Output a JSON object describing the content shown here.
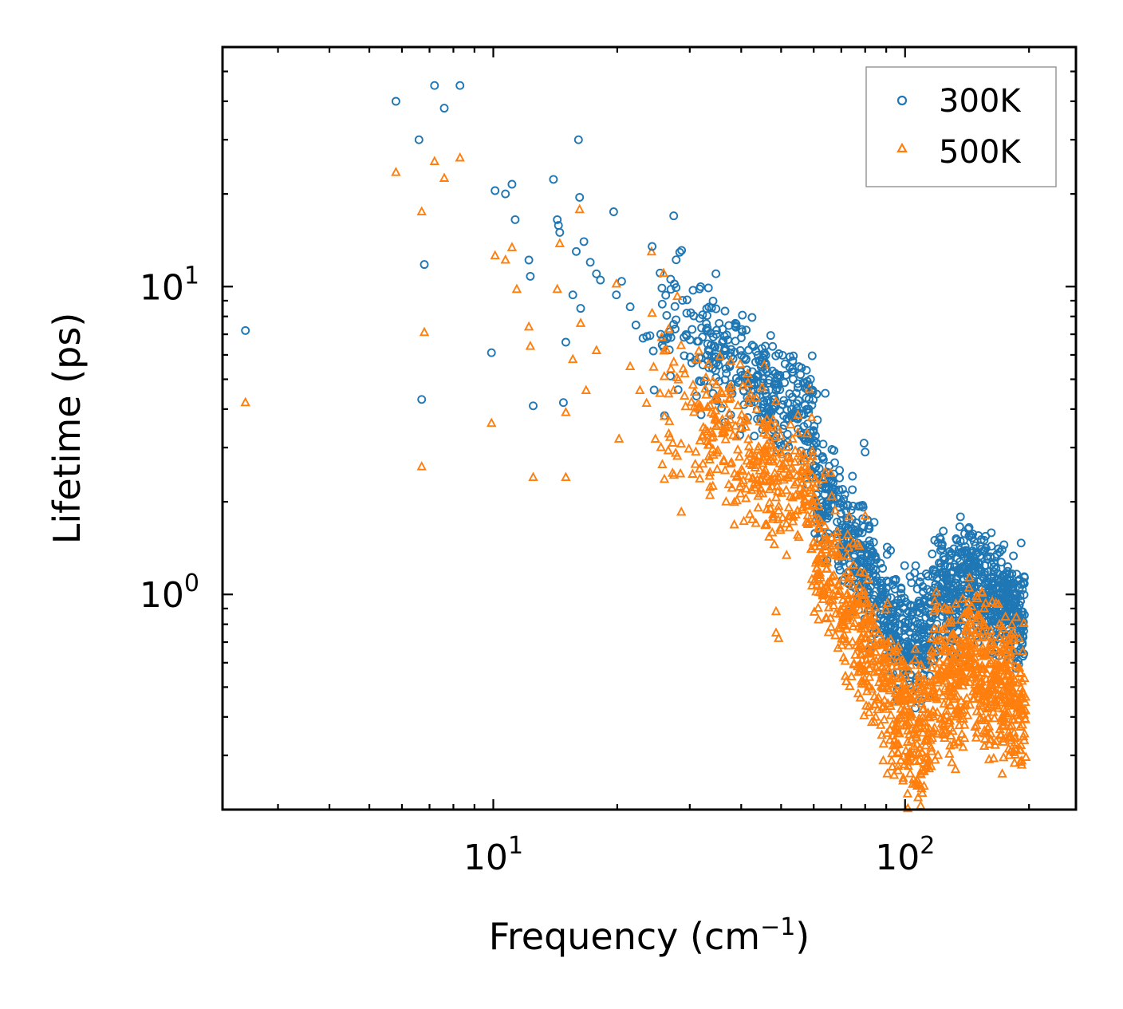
{
  "chart_data": {
    "type": "scatter",
    "title": "",
    "xlabel": "Frequency (cm",
    "xlabel_superscript": "−1",
    "xlabel_suffix": ")",
    "ylabel": "Lifetime (ps)",
    "xscale": "log",
    "yscale": "log",
    "xlim": [
      2.2,
      260
    ],
    "ylim": [
      0.2,
      60
    ],
    "grid": false,
    "legend_position": "top-right",
    "x_ticks": [
      {
        "base": "10",
        "exp": "1",
        "value": 10
      },
      {
        "base": "10",
        "exp": "2",
        "value": 100
      }
    ],
    "y_ticks": [
      {
        "base": "10",
        "exp": "0",
        "value": 1
      },
      {
        "base": "10",
        "exp": "1",
        "value": 10
      }
    ],
    "series": [
      {
        "name": "300K",
        "marker": "circle",
        "color": "#1f77b4",
        "values": [
          [
            2.5,
            7.2
          ],
          [
            5.8,
            40
          ],
          [
            6.6,
            30
          ],
          [
            6.7,
            4.3
          ],
          [
            6.8,
            11.8
          ],
          [
            7.2,
            45
          ],
          [
            7.6,
            38
          ],
          [
            8.3,
            45
          ],
          [
            9.9,
            6.1
          ],
          [
            10.1,
            20.5
          ],
          [
            10.7,
            20
          ],
          [
            11.1,
            21.5
          ],
          [
            11.3,
            16.5
          ],
          [
            12.2,
            12.2
          ],
          [
            12.3,
            10.8
          ],
          [
            12.5,
            4.1
          ],
          [
            14.0,
            22.3
          ],
          [
            14.3,
            16.5
          ],
          [
            14.4,
            15.8
          ],
          [
            14.5,
            15
          ],
          [
            14.8,
            4.2
          ],
          [
            15.0,
            6.6
          ],
          [
            15.6,
            9.4
          ],
          [
            15.9,
            13
          ],
          [
            16.1,
            30
          ],
          [
            16.2,
            19.5
          ],
          [
            16.3,
            8.5
          ],
          [
            16.6,
            14
          ],
          [
            17.2,
            12
          ],
          [
            17.8,
            11
          ],
          [
            18.2,
            10.5
          ],
          [
            19.6,
            17.5
          ],
          [
            19.9,
            9.4
          ],
          [
            20.5,
            10.4
          ],
          [
            21.5,
            8.6
          ],
          [
            22.2,
            7.5
          ],
          [
            23.1,
            6.8
          ],
          [
            24.3,
            13.5
          ],
          [
            25.5,
            7
          ],
          [
            27.0,
            9.8
          ],
          [
            29.5,
            8.2
          ],
          [
            33.3,
            9.9
          ],
          [
            36.0,
            6.6
          ],
          [
            39.8,
            6.2
          ],
          [
            45.1,
            5.3
          ],
          [
            48.6,
            4.6
          ],
          [
            53.3,
            5.4
          ],
          [
            58.3,
            4.8
          ],
          [
            64.0,
            4.5
          ],
          [
            79.5,
            3.1
          ],
          [
            80.0,
            2.9
          ],
          [
            108.5,
            1.1
          ],
          [
            118.0,
            1.5
          ],
          [
            143.0,
            1.65
          ],
          [
            155.6,
            1.5
          ],
          [
            175.0,
            1.1
          ]
        ]
      },
      {
        "name": "500K",
        "marker": "triangle",
        "color": "#ff7f0e",
        "values": [
          [
            2.5,
            4.2
          ],
          [
            5.8,
            23.5
          ],
          [
            6.7,
            17.5
          ],
          [
            6.7,
            2.6
          ],
          [
            6.8,
            7.1
          ],
          [
            7.2,
            25.5
          ],
          [
            7.6,
            22.5
          ],
          [
            8.3,
            26.2
          ],
          [
            9.9,
            3.6
          ],
          [
            10.1,
            12.6
          ],
          [
            10.7,
            12.2
          ],
          [
            11.1,
            13.4
          ],
          [
            11.4,
            9.8
          ],
          [
            12.2,
            7.4
          ],
          [
            12.3,
            6.4
          ],
          [
            12.5,
            2.4
          ],
          [
            14.3,
            9.8
          ],
          [
            14.5,
            13.8
          ],
          [
            15.0,
            3.9
          ],
          [
            15.0,
            2.4
          ],
          [
            15.6,
            5.8
          ],
          [
            16.2,
            17.8
          ],
          [
            16.3,
            7.6
          ],
          [
            16.8,
            4.6
          ],
          [
            17.8,
            6.2
          ],
          [
            19.9,
            10.2
          ],
          [
            20.2,
            3.2
          ],
          [
            21.5,
            5.5
          ],
          [
            22.7,
            4.6
          ],
          [
            24.3,
            8.2
          ],
          [
            25.4,
            4.5
          ],
          [
            27.0,
            5.4
          ],
          [
            33.3,
            5.6
          ],
          [
            36.0,
            3.7
          ],
          [
            41.0,
            3.5
          ],
          [
            48.6,
            0.88
          ],
          [
            48.6,
            0.75
          ],
          [
            49.3,
            0.72
          ],
          [
            53.3,
            3.2
          ],
          [
            64.0,
            2.5
          ],
          [
            80.0,
            1.8
          ],
          [
            118.0,
            0.95
          ],
          [
            143.0,
            1.05
          ],
          [
            155.6,
            0.9
          ],
          [
            120.2,
            0.3
          ],
          [
            185.0,
            0.33
          ]
        ]
      }
    ]
  }
}
